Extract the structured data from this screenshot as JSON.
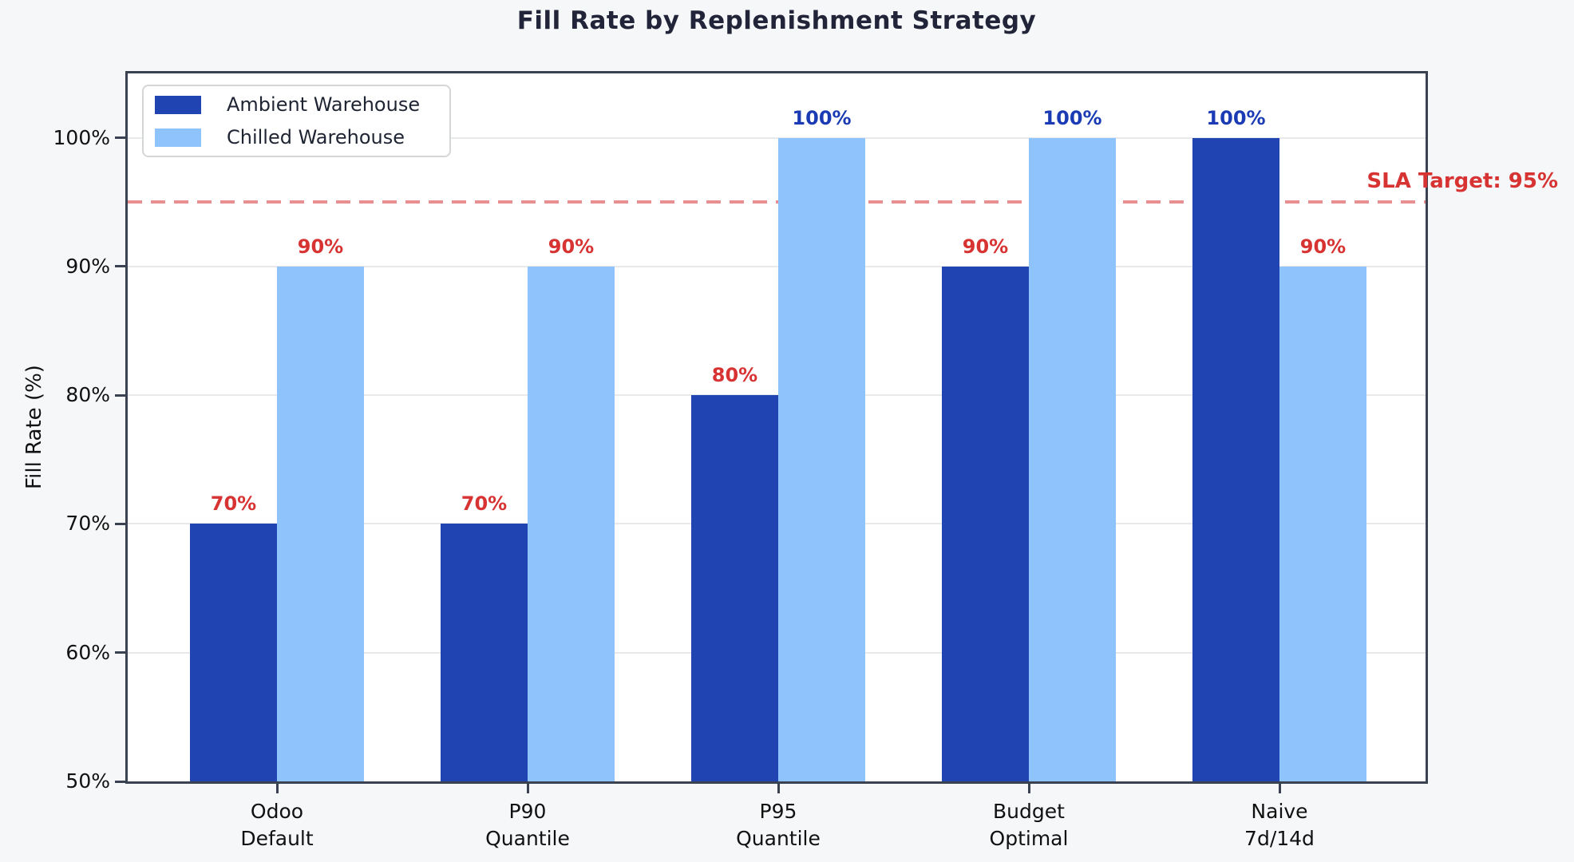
{
  "figure": {
    "background": "#f5f7f8",
    "plot_background": "#ffffff",
    "spine_color": "#3a4252",
    "grid_color": "#e7e9eb",
    "title_color": "#222539",
    "tick_text_color": "#111111"
  },
  "chart_data": {
    "type": "bar",
    "title": "Fill Rate by Replenishment Strategy",
    "ylabel": "Fill Rate (%)",
    "xlabel": "",
    "ylim": [
      50,
      105
    ],
    "ytick_values": [
      50,
      60,
      70,
      80,
      90,
      100
    ],
    "ytick_labels": [
      "50%",
      "60%",
      "70%",
      "80%",
      "90%",
      "100%"
    ],
    "gridline_values": [
      60,
      70,
      80,
      90,
      100
    ],
    "grid": "horizontal",
    "categories": [
      [
        "Odoo",
        "Default"
      ],
      [
        "P90",
        "Quantile"
      ],
      [
        "P95",
        "Quantile"
      ],
      [
        "Budget",
        "Optimal"
      ],
      [
        "Naive",
        "7d/14d"
      ]
    ],
    "series": [
      {
        "name": "Ambient Warehouse",
        "color": "#2044b2",
        "values": [
          70,
          70,
          80,
          90,
          100
        ],
        "labels": [
          "70%",
          "70%",
          "80%",
          "90%",
          "100%"
        ]
      },
      {
        "name": "Chilled Warehouse",
        "color": "#8ec3fb",
        "values": [
          90,
          90,
          100,
          100,
          90
        ],
        "labels": [
          "90%",
          "90%",
          "100%",
          "100%",
          "90%"
        ]
      }
    ],
    "bar_label_colors": {
      "below_target": "#d83333",
      "at_or_above_target": "#1a3bb3"
    },
    "reference_line": {
      "value": 95,
      "label": "SLA Target: 95%",
      "text_color": "#d83333",
      "line_color": "rgba(217,68,68,0.6)"
    },
    "legend": {
      "position": "upper-left",
      "entries": [
        "Ambient Warehouse",
        "Chilled Warehouse"
      ]
    }
  }
}
